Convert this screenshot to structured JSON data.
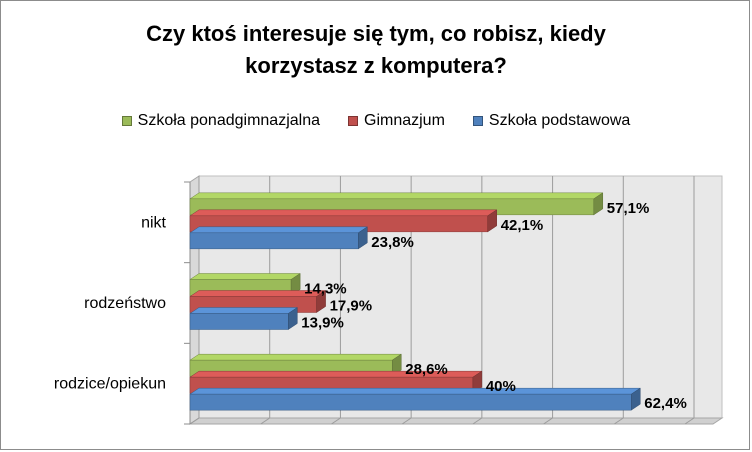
{
  "chart_data": {
    "type": "bar",
    "orientation": "horizontal",
    "title_lines": [
      "Czy ktoś interesuje się tym, co robisz, kiedy",
      "korzystasz z komputera?"
    ],
    "categories": [
      "nikt",
      "rodzeństwo",
      "rodzice/opiekun"
    ],
    "series": [
      {
        "name": "Szkoła ponadgimnazjalna",
        "values": [
          57.1,
          14.3,
          28.6
        ],
        "labels": [
          "57,1%",
          "14,3%",
          "28,6%"
        ],
        "color": "#9bbb59"
      },
      {
        "name": "Gimnazjum",
        "values": [
          42.1,
          17.9,
          40
        ],
        "labels": [
          "42,1%",
          "17,9%",
          "40%"
        ],
        "color": "#c0504d"
      },
      {
        "name": "Szkoła podstawowa",
        "values": [
          23.8,
          13.9,
          62.4
        ],
        "labels": [
          "23,8%",
          "13,9%",
          "62,4%"
        ],
        "color": "#4f81bd"
      }
    ],
    "legend_order": [
      "Szkoła ponadgimnazjalna",
      "Gimnazjum",
      "Szkoła podstawowa"
    ],
    "xlim": [
      0,
      70
    ],
    "grid": true,
    "legend_position": "top",
    "data_labels": true,
    "style": "3d"
  }
}
